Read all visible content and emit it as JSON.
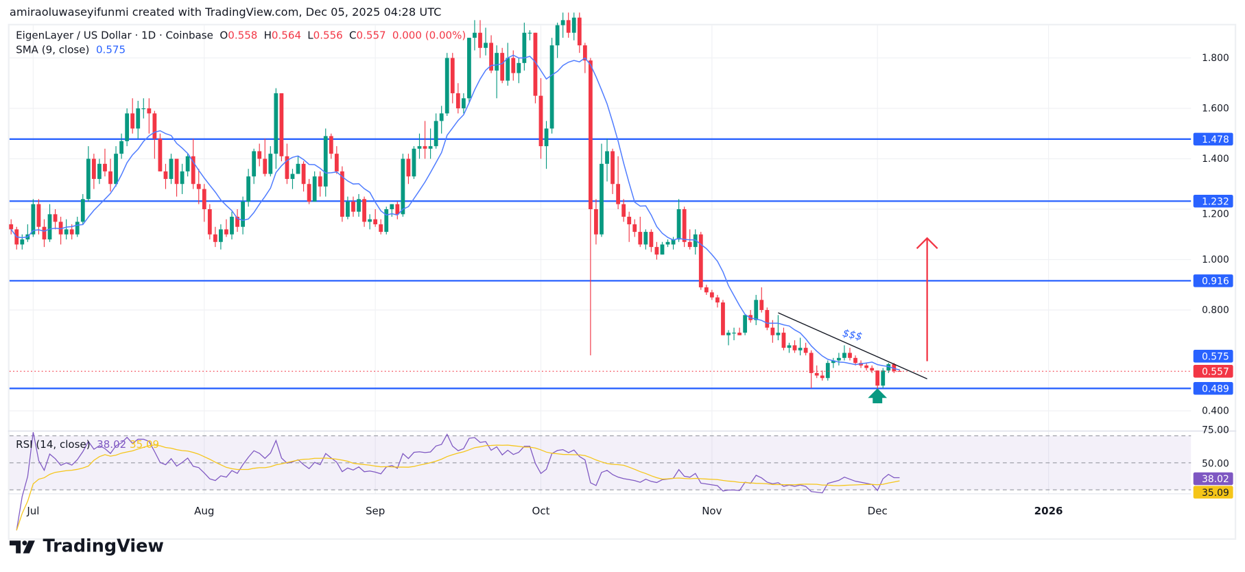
{
  "header": {
    "attribution": "amiraoluwaseyifunmi created with TradingView.com, Dec 05, 2025 04:28 UTC"
  },
  "legend": {
    "symbol": "EigenLayer / US Dollar · 1D · Coinbase",
    "o_label": "O",
    "o": "0.558",
    "h_label": "H",
    "h": "0.564",
    "l_label": "L",
    "l": "0.556",
    "c_label": "C",
    "c": "0.557",
    "change": "0.000 (0.00%)",
    "sma_label": "SMA (9, close)",
    "sma_value": "0.575",
    "rsi_label": "RSI (14, close)",
    "rsi_value": "38.02",
    "rsi_ma_value": "35.09"
  },
  "logo": {
    "text": "TradingView"
  },
  "colors": {
    "up": "#089981",
    "down": "#f23645",
    "sma": "#4f7cff",
    "level": "#2962ff",
    "rsi": "#7e57c2",
    "rsi_ma": "#f5c518",
    "annotation_arrow_up": "#f23645",
    "annotation_arrow_green": "#089981"
  },
  "chart_data": {
    "type": "candlestick",
    "interval": "1D",
    "ylim": [
      0.33,
      1.95
    ],
    "grid": true,
    "price_ticks": [
      "1.800",
      "1.600",
      "1.400",
      "1.200",
      "1.000",
      "0.800",
      "0.400"
    ],
    "time_ticks": [
      {
        "label": "Jul",
        "date": "2025-07-01"
      },
      {
        "label": "Aug",
        "date": "2025-08-01"
      },
      {
        "label": "Sep",
        "date": "2025-09-01"
      },
      {
        "label": "Oct",
        "date": "2025-10-01"
      },
      {
        "label": "Nov",
        "date": "2025-11-01"
      },
      {
        "label": "Dec",
        "date": "2025-12-01"
      },
      {
        "label": "2026",
        "date": "2026-01-01",
        "bold": true
      }
    ],
    "horizontal_levels": [
      {
        "price": 1.478,
        "label": "1.478"
      },
      {
        "price": 1.232,
        "label": "1.232"
      },
      {
        "price": 0.916,
        "label": "0.916"
      },
      {
        "price": 0.489,
        "label": "0.489"
      }
    ],
    "last_price": {
      "price": 0.557,
      "label": "0.557"
    },
    "sma_last": {
      "price": 0.575,
      "label": "0.575"
    },
    "sma_period": 9,
    "rsi": {
      "period": 14,
      "ma_period": 14,
      "ticks": [
        "75.00",
        "50.00"
      ],
      "upper_band": 70,
      "middle": 50,
      "lower_band": 30,
      "last_label": "38.02",
      "ma_last_label": "35.09"
    },
    "annotations": {
      "trendline": {
        "from": {
          "date": "2025-11-13",
          "price": 0.789
        },
        "to": {
          "date": "2025-12-10",
          "price": 0.527
        }
      },
      "up_arrow": {
        "date": "2025-12-10",
        "from": 0.597,
        "to": 1.085
      },
      "green_arrow": {
        "date": "2025-12-01",
        "tip": 0.489,
        "base": 0.43
      },
      "text": {
        "value": "$$$",
        "date": "2025-11-26",
        "price": 0.69
      }
    },
    "candles_fields": [
      "date",
      "open",
      "high",
      "low",
      "close"
    ],
    "candles": [
      [
        "2025-06-27",
        1.14,
        1.16,
        1.1,
        1.12
      ],
      [
        "2025-06-28",
        1.12,
        1.13,
        1.04,
        1.06
      ],
      [
        "2025-06-29",
        1.06,
        1.1,
        1.04,
        1.08
      ],
      [
        "2025-06-30",
        1.08,
        1.14,
        1.07,
        1.1
      ],
      [
        "2025-07-01",
        1.1,
        1.24,
        1.09,
        1.22
      ],
      [
        "2025-07-02",
        1.22,
        1.24,
        1.1,
        1.13
      ],
      [
        "2025-07-03",
        1.13,
        1.16,
        1.05,
        1.08
      ],
      [
        "2025-07-04",
        1.08,
        1.22,
        1.07,
        1.18
      ],
      [
        "2025-07-05",
        1.18,
        1.2,
        1.12,
        1.15
      ],
      [
        "2025-07-06",
        1.15,
        1.17,
        1.06,
        1.1
      ],
      [
        "2025-07-07",
        1.1,
        1.16,
        1.08,
        1.12
      ],
      [
        "2025-07-08",
        1.12,
        1.14,
        1.08,
        1.1
      ],
      [
        "2025-07-09",
        1.1,
        1.17,
        1.09,
        1.15
      ],
      [
        "2025-07-10",
        1.15,
        1.26,
        1.14,
        1.24
      ],
      [
        "2025-07-11",
        1.24,
        1.45,
        1.23,
        1.4
      ],
      [
        "2025-07-12",
        1.4,
        1.42,
        1.28,
        1.32
      ],
      [
        "2025-07-13",
        1.32,
        1.4,
        1.3,
        1.38
      ],
      [
        "2025-07-14",
        1.38,
        1.44,
        1.33,
        1.35
      ],
      [
        "2025-07-15",
        1.35,
        1.4,
        1.27,
        1.3
      ],
      [
        "2025-07-16",
        1.3,
        1.45,
        1.29,
        1.42
      ],
      [
        "2025-07-17",
        1.42,
        1.5,
        1.4,
        1.47
      ],
      [
        "2025-07-18",
        1.47,
        1.6,
        1.45,
        1.58
      ],
      [
        "2025-07-19",
        1.58,
        1.64,
        1.5,
        1.52
      ],
      [
        "2025-07-20",
        1.52,
        1.63,
        1.48,
        1.6
      ],
      [
        "2025-07-21",
        1.6,
        1.64,
        1.56,
        1.6
      ],
      [
        "2025-07-22",
        1.6,
        1.64,
        1.5,
        1.58
      ],
      [
        "2025-07-23",
        1.58,
        1.59,
        1.4,
        1.48
      ],
      [
        "2025-07-24",
        1.48,
        1.5,
        1.35,
        1.35
      ],
      [
        "2025-07-25",
        1.35,
        1.38,
        1.28,
        1.32
      ],
      [
        "2025-07-26",
        1.32,
        1.42,
        1.3,
        1.4
      ],
      [
        "2025-07-27",
        1.4,
        1.4,
        1.25,
        1.3
      ],
      [
        "2025-07-28",
        1.3,
        1.38,
        1.26,
        1.35
      ],
      [
        "2025-07-29",
        1.35,
        1.42,
        1.33,
        1.41
      ],
      [
        "2025-07-30",
        1.41,
        1.48,
        1.28,
        1.3
      ],
      [
        "2025-07-31",
        1.3,
        1.36,
        1.22,
        1.28
      ],
      [
        "2025-08-01",
        1.28,
        1.3,
        1.15,
        1.2
      ],
      [
        "2025-08-02",
        1.2,
        1.22,
        1.08,
        1.1
      ],
      [
        "2025-08-03",
        1.1,
        1.13,
        1.05,
        1.07
      ],
      [
        "2025-08-04",
        1.07,
        1.14,
        1.04,
        1.12
      ],
      [
        "2025-08-05",
        1.12,
        1.16,
        1.09,
        1.1
      ],
      [
        "2025-08-06",
        1.1,
        1.19,
        1.08,
        1.17
      ],
      [
        "2025-08-07",
        1.17,
        1.2,
        1.11,
        1.13
      ],
      [
        "2025-08-08",
        1.13,
        1.25,
        1.1,
        1.23
      ],
      [
        "2025-08-09",
        1.23,
        1.36,
        1.21,
        1.33
      ],
      [
        "2025-08-10",
        1.33,
        1.44,
        1.3,
        1.43
      ],
      [
        "2025-08-11",
        1.43,
        1.46,
        1.37,
        1.4
      ],
      [
        "2025-08-12",
        1.4,
        1.48,
        1.33,
        1.34
      ],
      [
        "2025-08-13",
        1.34,
        1.45,
        1.33,
        1.42
      ],
      [
        "2025-08-14",
        1.42,
        1.68,
        1.36,
        1.66
      ],
      [
        "2025-08-15",
        1.66,
        1.66,
        1.39,
        1.41
      ],
      [
        "2025-08-16",
        1.41,
        1.46,
        1.3,
        1.32
      ],
      [
        "2025-08-17",
        1.32,
        1.36,
        1.28,
        1.34
      ],
      [
        "2025-08-18",
        1.34,
        1.41,
        1.34,
        1.38
      ],
      [
        "2025-08-19",
        1.38,
        1.39,
        1.27,
        1.3
      ],
      [
        "2025-08-20",
        1.3,
        1.32,
        1.22,
        1.23
      ],
      [
        "2025-08-21",
        1.23,
        1.35,
        1.23,
        1.33
      ],
      [
        "2025-08-22",
        1.33,
        1.35,
        1.25,
        1.29
      ],
      [
        "2025-08-23",
        1.29,
        1.52,
        1.25,
        1.49
      ],
      [
        "2025-08-24",
        1.49,
        1.5,
        1.4,
        1.42
      ],
      [
        "2025-08-25",
        1.42,
        1.45,
        1.34,
        1.35
      ],
      [
        "2025-08-26",
        1.35,
        1.37,
        1.15,
        1.17
      ],
      [
        "2025-08-27",
        1.17,
        1.25,
        1.16,
        1.23
      ],
      [
        "2025-08-28",
        1.23,
        1.25,
        1.17,
        1.19
      ],
      [
        "2025-08-29",
        1.19,
        1.26,
        1.17,
        1.24
      ],
      [
        "2025-08-30",
        1.24,
        1.25,
        1.13,
        1.15
      ],
      [
        "2025-08-31",
        1.15,
        1.18,
        1.12,
        1.16
      ],
      [
        "2025-09-01",
        1.16,
        1.2,
        1.13,
        1.14
      ],
      [
        "2025-09-02",
        1.14,
        1.16,
        1.1,
        1.11
      ],
      [
        "2025-09-03",
        1.11,
        1.21,
        1.1,
        1.2
      ],
      [
        "2025-09-04",
        1.2,
        1.22,
        1.17,
        1.22
      ],
      [
        "2025-09-05",
        1.22,
        1.23,
        1.16,
        1.18
      ],
      [
        "2025-09-06",
        1.18,
        1.42,
        1.17,
        1.4
      ],
      [
        "2025-09-07",
        1.4,
        1.42,
        1.3,
        1.33
      ],
      [
        "2025-09-08",
        1.33,
        1.45,
        1.32,
        1.44
      ],
      [
        "2025-09-09",
        1.44,
        1.5,
        1.4,
        1.45
      ],
      [
        "2025-09-10",
        1.45,
        1.55,
        1.4,
        1.44
      ],
      [
        "2025-09-11",
        1.44,
        1.52,
        1.4,
        1.45
      ],
      [
        "2025-09-12",
        1.45,
        1.58,
        1.44,
        1.55
      ],
      [
        "2025-09-13",
        1.55,
        1.61,
        1.5,
        1.58
      ],
      [
        "2025-09-14",
        1.58,
        1.82,
        1.57,
        1.8
      ],
      [
        "2025-09-15",
        1.8,
        1.82,
        1.62,
        1.66
      ],
      [
        "2025-09-16",
        1.66,
        1.7,
        1.58,
        1.6
      ],
      [
        "2025-09-17",
        1.6,
        1.66,
        1.58,
        1.64
      ],
      [
        "2025-09-18",
        1.64,
        1.88,
        1.62,
        1.88
      ],
      [
        "2025-09-19",
        1.88,
        1.95,
        1.83,
        1.9
      ],
      [
        "2025-09-20",
        1.9,
        1.95,
        1.8,
        1.84
      ],
      [
        "2025-09-21",
        1.84,
        1.92,
        1.81,
        1.86
      ],
      [
        "2025-09-22",
        1.86,
        1.89,
        1.74,
        1.75
      ],
      [
        "2025-09-23",
        1.75,
        1.85,
        1.64,
        1.82
      ],
      [
        "2025-09-24",
        1.82,
        1.84,
        1.7,
        1.71
      ],
      [
        "2025-09-25",
        1.71,
        1.86,
        1.69,
        1.8
      ],
      [
        "2025-09-26",
        1.8,
        1.83,
        1.71,
        1.74
      ],
      [
        "2025-09-27",
        1.74,
        1.8,
        1.7,
        1.78
      ],
      [
        "2025-09-28",
        1.78,
        1.94,
        1.75,
        1.9
      ],
      [
        "2025-09-29",
        1.9,
        1.91,
        1.87,
        1.9
      ],
      [
        "2025-09-30",
        1.9,
        1.9,
        1.62,
        1.65
      ],
      [
        "2025-10-01",
        1.65,
        1.72,
        1.4,
        1.45
      ],
      [
        "2025-10-02",
        1.45,
        1.55,
        1.36,
        1.52
      ],
      [
        "2025-10-03",
        1.52,
        1.88,
        1.5,
        1.85
      ],
      [
        "2025-10-04",
        1.85,
        1.94,
        1.8,
        1.93
      ],
      [
        "2025-10-05",
        1.93,
        1.98,
        1.88,
        1.95
      ],
      [
        "2025-10-06",
        1.95,
        1.98,
        1.88,
        1.9
      ],
      [
        "2025-10-07",
        1.9,
        1.98,
        1.87,
        1.96
      ],
      [
        "2025-10-08",
        1.96,
        1.98,
        1.82,
        1.85
      ],
      [
        "2025-10-09",
        1.85,
        1.86,
        1.74,
        1.79
      ],
      [
        "2025-10-10",
        1.79,
        1.8,
        0.62,
        1.2
      ],
      [
        "2025-10-11",
        1.2,
        1.24,
        1.06,
        1.1
      ],
      [
        "2025-10-12",
        1.1,
        1.46,
        1.09,
        1.38
      ],
      [
        "2025-10-13",
        1.38,
        1.48,
        1.31,
        1.43
      ],
      [
        "2025-10-14",
        1.43,
        1.44,
        1.26,
        1.3
      ],
      [
        "2025-10-15",
        1.3,
        1.41,
        1.2,
        1.22
      ],
      [
        "2025-10-16",
        1.22,
        1.24,
        1.15,
        1.17
      ],
      [
        "2025-10-17",
        1.17,
        1.19,
        1.07,
        1.14
      ],
      [
        "2025-10-18",
        1.14,
        1.16,
        1.09,
        1.11
      ],
      [
        "2025-10-19",
        1.11,
        1.17,
        1.05,
        1.06
      ],
      [
        "2025-10-20",
        1.06,
        1.12,
        1.04,
        1.11
      ],
      [
        "2025-10-21",
        1.11,
        1.12,
        1.03,
        1.05
      ],
      [
        "2025-10-22",
        1.05,
        1.07,
        1.0,
        1.02
      ],
      [
        "2025-10-23",
        1.02,
        1.07,
        1.02,
        1.06
      ],
      [
        "2025-10-24",
        1.06,
        1.08,
        1.05,
        1.07
      ],
      [
        "2025-10-25",
        1.06,
        1.09,
        1.04,
        1.08
      ],
      [
        "2025-10-26",
        1.08,
        1.24,
        1.07,
        1.2
      ],
      [
        "2025-10-27",
        1.2,
        1.21,
        1.05,
        1.07
      ],
      [
        "2025-10-28",
        1.07,
        1.12,
        1.04,
        1.05
      ],
      [
        "2025-10-29",
        1.05,
        1.12,
        1.02,
        1.1
      ],
      [
        "2025-10-30",
        1.1,
        1.11,
        0.88,
        0.89
      ],
      [
        "2025-10-31",
        0.89,
        0.9,
        0.86,
        0.87
      ],
      [
        "2025-11-01",
        0.87,
        0.88,
        0.84,
        0.85
      ],
      [
        "2025-11-02",
        0.85,
        0.86,
        0.81,
        0.83
      ],
      [
        "2025-11-03",
        0.83,
        0.84,
        0.7,
        0.7
      ],
      [
        "2025-11-04",
        0.7,
        0.72,
        0.66,
        0.71
      ],
      [
        "2025-11-05",
        0.71,
        0.73,
        0.68,
        0.71
      ],
      [
        "2025-11-06",
        0.71,
        0.73,
        0.7,
        0.7
      ],
      [
        "2025-11-07",
        0.71,
        0.78,
        0.7,
        0.78
      ],
      [
        "2025-11-08",
        0.78,
        0.8,
        0.75,
        0.76
      ],
      [
        "2025-11-09",
        0.76,
        0.86,
        0.74,
        0.84
      ],
      [
        "2025-11-10",
        0.84,
        0.89,
        0.79,
        0.8
      ],
      [
        "2025-11-11",
        0.8,
        0.81,
        0.72,
        0.73
      ],
      [
        "2025-11-12",
        0.73,
        0.76,
        0.67,
        0.7
      ],
      [
        "2025-11-13",
        0.7,
        0.78,
        0.68,
        0.71
      ],
      [
        "2025-11-14",
        0.71,
        0.73,
        0.64,
        0.65
      ],
      [
        "2025-11-15",
        0.65,
        0.67,
        0.63,
        0.66
      ],
      [
        "2025-11-16",
        0.66,
        0.68,
        0.63,
        0.64
      ],
      [
        "2025-11-17",
        0.64,
        0.69,
        0.62,
        0.65
      ],
      [
        "2025-11-18",
        0.65,
        0.67,
        0.62,
        0.63
      ],
      [
        "2025-11-19",
        0.63,
        0.64,
        0.49,
        0.55
      ],
      [
        "2025-11-20",
        0.55,
        0.58,
        0.53,
        0.54
      ],
      [
        "2025-11-21",
        0.54,
        0.56,
        0.52,
        0.53
      ],
      [
        "2025-11-22",
        0.53,
        0.6,
        0.52,
        0.59
      ],
      [
        "2025-11-23",
        0.59,
        0.61,
        0.57,
        0.6
      ],
      [
        "2025-11-24",
        0.6,
        0.63,
        0.58,
        0.61
      ],
      [
        "2025-11-25",
        0.61,
        0.66,
        0.6,
        0.63
      ],
      [
        "2025-11-26",
        0.63,
        0.65,
        0.6,
        0.61
      ],
      [
        "2025-11-27",
        0.61,
        0.62,
        0.58,
        0.59
      ],
      [
        "2025-11-28",
        0.59,
        0.6,
        0.57,
        0.58
      ],
      [
        "2025-11-29",
        0.58,
        0.59,
        0.56,
        0.57
      ],
      [
        "2025-11-30",
        0.57,
        0.58,
        0.55,
        0.56
      ],
      [
        "2025-12-01",
        0.56,
        0.56,
        0.489,
        0.5
      ],
      [
        "2025-12-02",
        0.5,
        0.57,
        0.49,
        0.56
      ],
      [
        "2025-12-03",
        0.56,
        0.59,
        0.55,
        0.585
      ],
      [
        "2025-12-04",
        0.585,
        0.59,
        0.55,
        0.557
      ],
      [
        "2025-12-05",
        0.558,
        0.564,
        0.556,
        0.557
      ]
    ]
  }
}
